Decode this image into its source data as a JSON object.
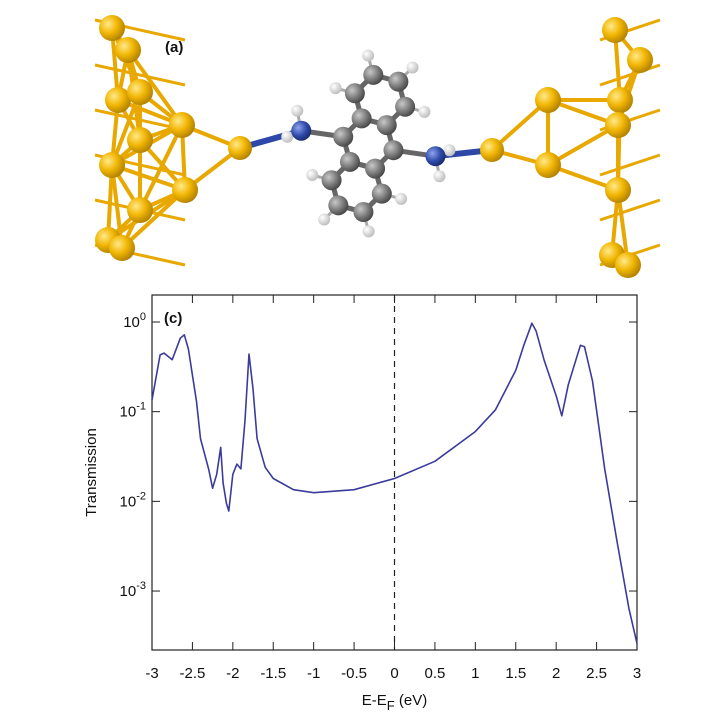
{
  "panel_a": {
    "label": "(a)"
  },
  "chart_data": {
    "type": "line",
    "panel_label": "(c)",
    "y_label": "Transmission",
    "x_label": {
      "text": "E-E",
      "subscript": "F",
      "suffix": " (eV)"
    },
    "x": [
      -3,
      -2.9,
      -2.85,
      -2.75,
      -2.65,
      -2.6,
      -2.55,
      -2.45,
      -2.4,
      -2.3,
      -2.25,
      -2.2,
      -2.15,
      -2.12,
      -2.08,
      -2.05,
      -2.0,
      -1.95,
      -1.9,
      -1.85,
      -1.8,
      -1.75,
      -1.7,
      -1.6,
      -1.5,
      -1.25,
      -1.0,
      -0.5,
      0,
      0.5,
      1.0,
      1.25,
      1.5,
      1.6,
      1.7,
      1.75,
      1.85,
      2.0,
      2.07,
      2.15,
      2.3,
      2.35,
      2.45,
      2.6,
      2.75,
      2.9,
      3.0
    ],
    "series": [
      {
        "color": "#3b3b9c",
        "values": [
          0.135,
          0.43,
          0.45,
          0.38,
          0.66,
          0.72,
          0.5,
          0.13,
          0.05,
          0.023,
          0.014,
          0.02,
          0.04,
          0.016,
          0.0095,
          0.0078,
          0.02,
          0.026,
          0.023,
          0.08,
          0.44,
          0.18,
          0.05,
          0.024,
          0.018,
          0.0135,
          0.0125,
          0.0135,
          0.018,
          0.028,
          0.06,
          0.105,
          0.29,
          0.55,
          0.97,
          0.8,
          0.38,
          0.15,
          0.09,
          0.2,
          0.55,
          0.53,
          0.22,
          0.023,
          0.0037,
          0.00064,
          0.00026
        ]
      }
    ],
    "xlim": [
      -3,
      3
    ],
    "xticks": [
      -3,
      -2.5,
      -2,
      -1.5,
      -1,
      -0.5,
      0,
      0.5,
      1,
      1.5,
      2,
      2.5,
      3
    ],
    "ylim": [
      0.00022,
      2
    ],
    "log_scale_y": true,
    "yticks": [
      {
        "value": 1,
        "label": "10",
        "exponent": "0"
      },
      {
        "value": 0.1,
        "label": "10",
        "exponent": "-1"
      },
      {
        "value": 0.01,
        "label": "10",
        "exponent": "-2"
      },
      {
        "value": 0.001,
        "label": "10",
        "exponent": "-3"
      }
    ],
    "vline": 0
  }
}
